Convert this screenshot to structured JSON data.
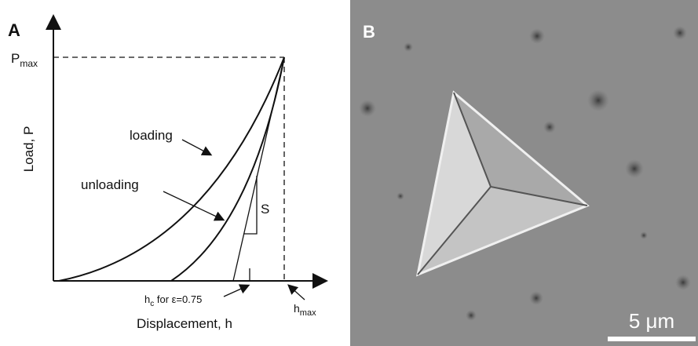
{
  "panel_a": {
    "label": "A",
    "p_max": {
      "main": "P",
      "sub": "max"
    },
    "y_axis_label": "Load, P",
    "x_axis_label": "Displacement, h",
    "loading": "loading",
    "unloading": "unloading",
    "stiffness": "S",
    "h_c": {
      "main": "h",
      "sub": "c",
      "rest": " for ε=0.75"
    },
    "h_max": {
      "main": "h",
      "sub": "max"
    }
  },
  "panel_b": {
    "label": "B",
    "scale_bar": "5 μm"
  }
}
